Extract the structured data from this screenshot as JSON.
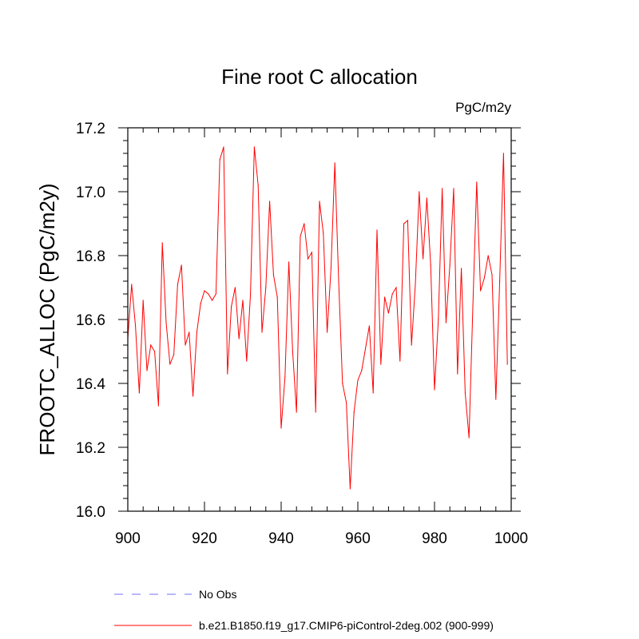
{
  "chart_data": {
    "type": "line",
    "title": "Fine root C allocation",
    "units_label": "PgC/m2y",
    "xlabel": "",
    "ylabel": "FROOTC_ALLOC  (PgC/m2y)",
    "xlim": [
      900,
      1000
    ],
    "ylim": [
      16.0,
      17.2
    ],
    "xticks": [
      900,
      920,
      940,
      960,
      980,
      1000
    ],
    "yticks": [
      16.0,
      16.2,
      16.4,
      16.6,
      16.8,
      17.0,
      17.2
    ],
    "xtick_labels": [
      "900",
      "920",
      "940",
      "960",
      "980",
      "1000"
    ],
    "ytick_labels": [
      "16.0",
      "16.2",
      "16.4",
      "16.6",
      "16.8",
      "17.0",
      "17.2"
    ],
    "x_minor_step": 4,
    "y_minor_step": 0.04,
    "legend": [
      {
        "label": "No Obs",
        "color": "#6f6fff",
        "style": "dashed"
      },
      {
        "label": "b.e21.B1850.f19_g17.CMIP6-piControl-2deg.002 (900-999)",
        "color": "#ff0000",
        "style": "solid"
      }
    ],
    "series": [
      {
        "name": "b.e21.B1850.f19_g17.CMIP6-piControl-2deg.002 (900-999)",
        "color": "#ff0000",
        "x": [
          900,
          901,
          902,
          903,
          904,
          905,
          906,
          907,
          908,
          909,
          910,
          911,
          912,
          913,
          914,
          915,
          916,
          917,
          918,
          919,
          920,
          921,
          922,
          923,
          924,
          925,
          926,
          927,
          928,
          929,
          930,
          931,
          932,
          933,
          934,
          935,
          936,
          937,
          938,
          939,
          940,
          941,
          942,
          943,
          944,
          945,
          946,
          947,
          948,
          949,
          950,
          951,
          952,
          953,
          954,
          955,
          956,
          957,
          958,
          959,
          960,
          961,
          962,
          963,
          964,
          965,
          966,
          967,
          968,
          969,
          970,
          971,
          972,
          973,
          974,
          975,
          976,
          977,
          978,
          979,
          980,
          981,
          982,
          983,
          984,
          985,
          986,
          987,
          988,
          989,
          990,
          991,
          992,
          993,
          994,
          995,
          996,
          997,
          998,
          999
        ],
        "values": [
          16.54,
          16.71,
          16.58,
          16.37,
          16.66,
          16.44,
          16.52,
          16.5,
          16.33,
          16.84,
          16.59,
          16.46,
          16.49,
          16.71,
          16.77,
          16.52,
          16.56,
          16.36,
          16.56,
          16.65,
          16.69,
          16.68,
          16.66,
          16.68,
          17.1,
          17.14,
          16.43,
          16.64,
          16.7,
          16.54,
          16.66,
          16.47,
          16.68,
          17.14,
          17.02,
          16.56,
          16.7,
          16.97,
          16.74,
          16.67,
          16.26,
          16.42,
          16.78,
          16.5,
          16.31,
          16.86,
          16.9,
          16.79,
          16.81,
          16.31,
          16.97,
          16.87,
          16.56,
          16.76,
          17.09,
          16.72,
          16.4,
          16.34,
          16.07,
          16.31,
          16.41,
          16.44,
          16.51,
          16.58,
          16.37,
          16.88,
          16.46,
          16.67,
          16.62,
          16.68,
          16.7,
          16.47,
          16.9,
          16.91,
          16.52,
          16.71,
          17.0,
          16.79,
          16.98,
          16.77,
          16.38,
          16.6,
          17.01,
          16.59,
          16.77,
          17.01,
          16.43,
          16.76,
          16.37,
          16.23,
          16.64,
          17.03,
          16.69,
          16.73,
          16.8,
          16.74,
          16.35,
          16.72,
          17.12,
          16.46
        ]
      }
    ]
  }
}
